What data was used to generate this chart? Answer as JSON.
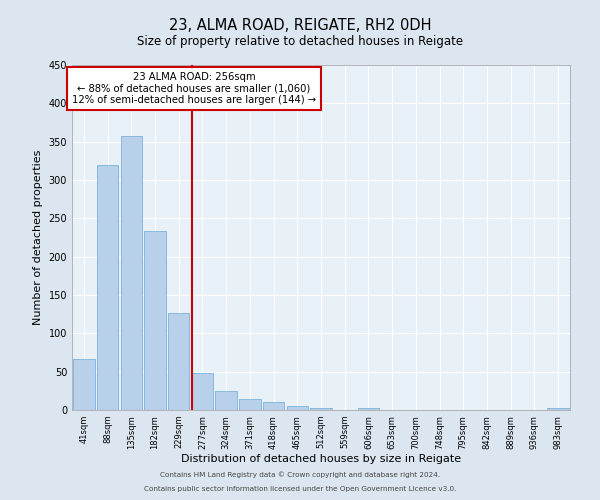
{
  "title": "23, ALMA ROAD, REIGATE, RH2 0DH",
  "subtitle": "Size of property relative to detached houses in Reigate",
  "xlabel": "Distribution of detached houses by size in Reigate",
  "ylabel": "Number of detached properties",
  "bar_labels": [
    "41sqm",
    "88sqm",
    "135sqm",
    "182sqm",
    "229sqm",
    "277sqm",
    "324sqm",
    "371sqm",
    "418sqm",
    "465sqm",
    "512sqm",
    "559sqm",
    "606sqm",
    "653sqm",
    "700sqm",
    "748sqm",
    "795sqm",
    "842sqm",
    "889sqm",
    "936sqm",
    "983sqm"
  ],
  "bar_values": [
    67,
    320,
    358,
    234,
    126,
    48,
    25,
    15,
    10,
    5,
    2,
    0,
    2,
    0,
    0,
    0,
    0,
    0,
    0,
    0,
    3
  ],
  "bar_color": "#b8d0ea",
  "bar_edge_color": "#6aaad4",
  "vline_color": "#cc0000",
  "annotation_title": "23 ALMA ROAD: 256sqm",
  "annotation_line1": "← 88% of detached houses are smaller (1,060)",
  "annotation_line2": "12% of semi-detached houses are larger (144) →",
  "annotation_box_color": "#cc0000",
  "ylim": [
    0,
    450
  ],
  "yticks": [
    0,
    50,
    100,
    150,
    200,
    250,
    300,
    350,
    400,
    450
  ],
  "bg_color": "#dce6f0",
  "plot_bg_color": "#e8f0f8",
  "footer_line1": "Contains HM Land Registry data © Crown copyright and database right 2024.",
  "footer_line2": "Contains public sector information licensed under the Open Government Licence v3.0."
}
